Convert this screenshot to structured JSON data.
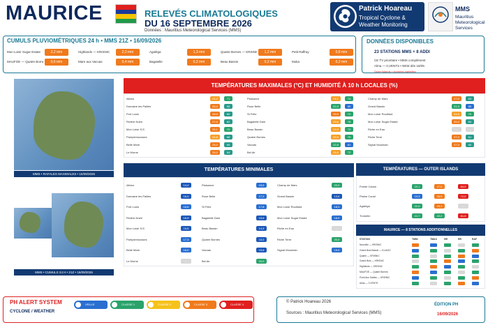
{
  "header": {
    "title": "MAURICE",
    "line1": "RELEVÉS CLIMATOLOGIQUES",
    "line2": "DU 16 SEPTEMBRE 2026",
    "line3": "Données : Mauritius Meteorological Services (MMS)",
    "brand_name": "Patrick Hoareau",
    "brand_sub1": "Tropical Cyclone &",
    "brand_sub2": "Weather Monitoring",
    "mms_name": "MMS",
    "mms_desc1": "Mauritius",
    "mms_desc2": "Meteorological",
    "mms_desc3": "Services"
  },
  "rain": {
    "heading": "CUMULS PLUVIOMÉTRIQUES 24 h • MMS 21Z • 16/09/2026",
    "items": [
      {
        "label": "Mon Loisir Sugar Estate",
        "value": "2,2 mm"
      },
      {
        "label": "Highlands — KRISNIC",
        "value": "2,0 mm"
      },
      {
        "label": "Agaléga",
        "value": "1,3 mm"
      },
      {
        "label": "Quatre Bornes — KRISNIC",
        "value": "1,2 mm"
      },
      {
        "label": "Petit Raffray",
        "value": "0,8 mm"
      },
      {
        "label": "MAUFOE — Quatre Bornes",
        "value": "0,6 mm"
      },
      {
        "label": "Mare aux Vacoas",
        "value": "0,4 mm"
      },
      {
        "label": "Bagatelle",
        "value": "0,2 mm"
      },
      {
        "label": "Beau Bassin",
        "value": "0,2 mm"
      },
      {
        "label": "Moka",
        "value": "0,2 mm"
      }
    ]
  },
  "data_panel": {
    "heading": "DONNÉES DISPONIBLES",
    "count": "23 STATIONS MMS + 8 ADDI",
    "note1": "CE TV prioritaire • MMS complément",
    "note2": "Alma — 0,VENTS • NEW dès 16/09.",
    "note3": "Outer islands • données partielles"
  },
  "maps": {
    "caption1": "MMS • RAFALES MAXIMALES • 15/09/2026",
    "caption2": "MMS • CUMULS 24 H • 21Z • 16/09/2026"
  },
  "tmax": {
    "heading": "TEMPÉRATURES MAXIMALES (°C) ET HUMIDITÉ À 10 h LOCALES (%)",
    "col1": [
      {
        "name": "Albion",
        "t": "24,2",
        "h": "71"
      },
      {
        "name": "Domaine les Pailles",
        "t": "25,0",
        "h": "65"
      },
      {
        "name": "Port Louis",
        "t": "26,0",
        "h": "60"
      },
      {
        "name": "Rivière Noire",
        "t": "27,0",
        "h": "62"
      },
      {
        "name": "Mon Loisir S.E.",
        "t": "25,1",
        "h": "70"
      },
      {
        "name": "Pamplemousses",
        "t": "24,8",
        "h": "68"
      },
      {
        "name": "Belle Mare",
        "t": "25,0",
        "h": "69"
      },
      {
        "name": "Le Morne",
        "t": "26,0",
        "h": "64"
      }
    ],
    "col2": [
      {
        "name": "Plaisance",
        "t": "24,1",
        "h": "74"
      },
      {
        "name": "Rose Belle",
        "t": "22,9",
        "h": "80"
      },
      {
        "name": "St Félix",
        "t": "25,0",
        "h": "72"
      },
      {
        "name": "Bagatelle Dam",
        "t": "23,6",
        "h": "78"
      },
      {
        "name": "Beau Bassin",
        "t": "24,0",
        "h": "73"
      },
      {
        "name": "Quatre Bornes",
        "t": "23,9",
        "h": "75"
      },
      {
        "name": "Vacoas",
        "t": "22,8",
        "h": "81"
      },
      {
        "name": "Bel Air",
        "t": "24,6",
        "h": "72"
      }
    ],
    "col3": [
      {
        "name": "Champ de Mars",
        "t": "27,0",
        "h": "63"
      },
      {
        "name": "Grand Bassin",
        "t": "21,0",
        "h": "85"
      },
      {
        "name": "Mon Loisir Rouillard",
        "t": "24,5",
        "h": "70"
      },
      {
        "name": "Mon Loisir Sugar Estate",
        "t": "25,0",
        "h": "69"
      },
      {
        "name": "Riche en Eau",
        "t": "—",
        "h": "—"
      },
      {
        "name": "Riche Terre",
        "t": "27,0",
        "h": "61"
      },
      {
        "name": "Signal Mountain",
        "t": "27,0",
        "h": "60"
      }
    ]
  },
  "tmin": {
    "heading": "TEMPÉRATURES MINIMALES",
    "col1": [
      {
        "name": "Albion",
        "t": "14,4"
      },
      {
        "name": "Domaine les Pailles",
        "t": "16,0"
      },
      {
        "name": "Port Louis",
        "t": "18,6"
      },
      {
        "name": "Rivière Noire",
        "t": "16,9"
      },
      {
        "name": "Mon Loisir S.E.",
        "t": "15,6"
      },
      {
        "name": "Pamplemousses",
        "t": "17,3"
      },
      {
        "name": "Belle Mare",
        "t": "18,0"
      },
      {
        "name": "Le Morne",
        "t": "—"
      }
    ],
    "col2": [
      {
        "name": "Plaisance",
        "t": "18,5"
      },
      {
        "name": "Rose Belle",
        "t": "17,2"
      },
      {
        "name": "St Félix",
        "t": "17,8"
      },
      {
        "name": "Bagatelle Dam",
        "t": "15,6"
      },
      {
        "name": "Beau Bassin",
        "t": "14,9"
      },
      {
        "name": "Quatre Bornes",
        "t": "16,0"
      },
      {
        "name": "Vacoas",
        "t": "15,6"
      },
      {
        "name": "Bel Air",
        "t": "20,0"
      }
    ],
    "col3": [
      {
        "name": "Champ de Mars",
        "t": "20,0"
      },
      {
        "name": "Grand Bassin",
        "t": "13,6"
      },
      {
        "name": "Mon Loisir Rouillard",
        "t": "18,0"
      },
      {
        "name": "Mon Loisir Sugar Estate",
        "t": "18,0"
      },
      {
        "name": "Riche en Eau",
        "t": "—"
      },
      {
        "name": "Riche Terre",
        "t": "20,0"
      },
      {
        "name": "Signal Mountain",
        "t": "19,0"
      }
    ]
  },
  "outer": {
    "heading": "TEMPÉRATURES — OUTER ISLANDS",
    "rows": [
      {
        "name": "Pointe Canon",
        "a": "20,1",
        "b": "27,0",
        "c": "84,0"
      },
      {
        "name": "Plaine Corail",
        "a": "19,3",
        "b": "26,0",
        "c": "72,0"
      },
      {
        "name": "Agaléga",
        "a": "22,0",
        "b": "29,1",
        "c": "—"
      },
      {
        "name": "Tromelin",
        "a": "21,7",
        "b": "22,2",
        "c": "61,0"
      }
    ]
  },
  "additional": {
    "heading": "MAURICE — 8 STATIONS ADDITIONNELLES",
    "cols": [
      "STATION",
      "TMIN",
      "TMAX",
      "HR",
      "RR",
      "RAF"
    ],
    "rows": [
      "Nouvelle — KRISNIC",
      "Grand Bois Bassin — KLIADO",
      "Quatre — KRISNIC",
      "Grand Bois — KRISNIC",
      "Highlands — KRISNIC",
      "MAUFOE — Quatre Bornes",
      "Point Aux Sables — KRISNIC",
      "Alma — 0,VENTS"
    ]
  },
  "alert": {
    "title": "PH ALERT SYSTEM",
    "subtitle": "CYCLONE / WEATHER",
    "levels": [
      "VEILLE",
      "CLASSE 1",
      "CLASSE 2",
      "CLASSE 3",
      "CLASSE 4"
    ]
  },
  "footer": {
    "copyright": "© Patrick Hoareau 2026",
    "sources": "Sources : Mauritius Meteorological Services (MMS)",
    "edition": "ÉDITION PH",
    "date": "16/09/2026"
  },
  "colors": {
    "navy": "#123a72",
    "teal": "#1a7a95",
    "orange": "#f07a1c",
    "red": "#e0201e",
    "green": "#2aa36b",
    "blue": "#2a6fd0"
  }
}
